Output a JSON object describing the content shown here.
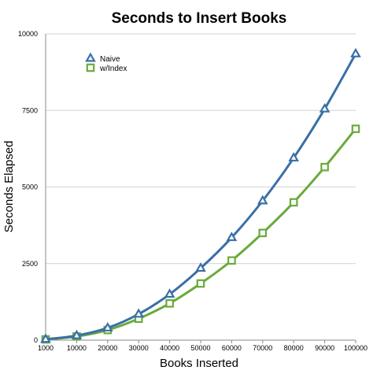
{
  "chart_data": {
    "type": "line",
    "title": "Seconds to Insert Books",
    "xlabel": "Books Inserted",
    "ylabel": "Seconds Elapsed",
    "x": [
      "1000",
      "10000",
      "20000",
      "30000",
      "40000",
      "50000",
      "60000",
      "70000",
      "80000",
      "90000",
      "100000"
    ],
    "yticks": [
      "0",
      "2500",
      "5000",
      "7500",
      "10000"
    ],
    "ylim": [
      0,
      10000
    ],
    "grid": true,
    "legend": "top-left",
    "series": [
      {
        "name": "Naive",
        "color": "#3a6fa6",
        "marker": "triangle",
        "values": [
          30,
          150,
          400,
          850,
          1500,
          2350,
          3350,
          4550,
          5950,
          7550,
          9350
        ]
      },
      {
        "name": "w/Index",
        "color": "#6aaa3a",
        "marker": "square",
        "values": [
          25,
          120,
          330,
          700,
          1200,
          1850,
          2600,
          3500,
          4500,
          5650,
          6900
        ]
      }
    ]
  }
}
